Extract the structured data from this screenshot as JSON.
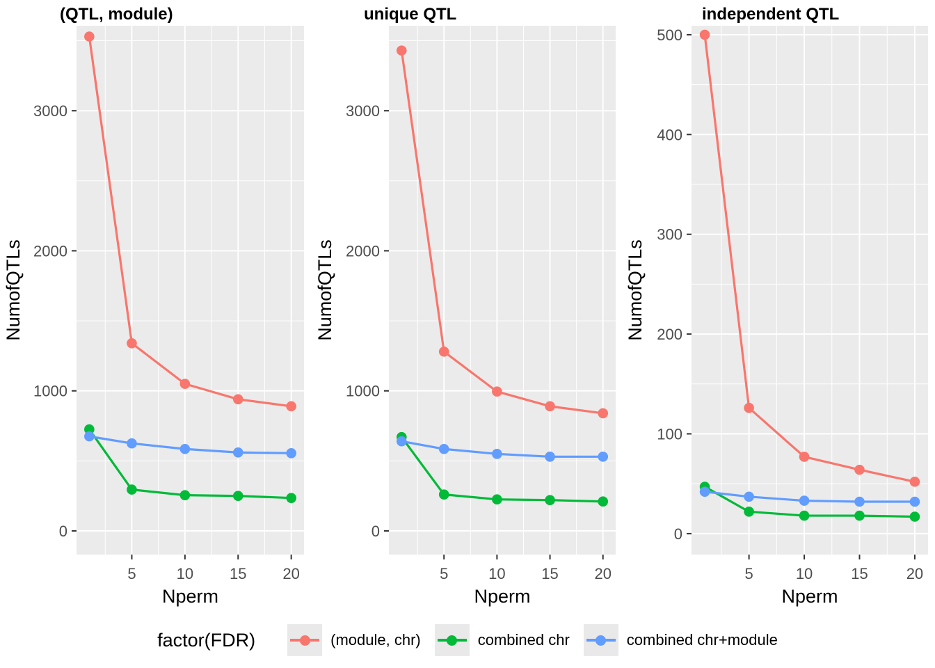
{
  "legend": {
    "title": "factor(FDR)",
    "entries": [
      {
        "label": "(module, chr)",
        "color": "#F8766D"
      },
      {
        "label": "combined chr",
        "color": "#00BA38"
      },
      {
        "label": "combined chr+module",
        "color": "#619CFF"
      }
    ]
  },
  "colors": {
    "panel_background": "#EBEBEB",
    "gridline": "#FFFFFF",
    "tick_label": "#4D4D4D",
    "tick_mark": "#333333",
    "axis_title": "#000000",
    "series_red": "#F8766D",
    "series_green": "#00BA38",
    "series_blue": "#619CFF"
  },
  "chart_data": [
    {
      "type": "line",
      "title": "(QTL, module)",
      "xlabel": "Nperm",
      "ylabel": "NumofQTLs",
      "x": [
        1,
        5,
        10,
        15,
        20
      ],
      "x_ticks": [
        5,
        10,
        15,
        20
      ],
      "x_minor_ticks": [
        2.5,
        7.5,
        12.5,
        17.5
      ],
      "xlim": [
        -0.2,
        21.2
      ],
      "y_ticks": [
        0,
        1000,
        2000,
        3000
      ],
      "y_minor_ticks": [
        500,
        1500,
        2500,
        3500
      ],
      "ylim": [
        -169,
        3607
      ],
      "grid": true,
      "legend_position": "bottom",
      "series": [
        {
          "name": "(module, chr)",
          "color": "#F8766D",
          "values": [
            3530,
            1340,
            1050,
            940,
            890
          ]
        },
        {
          "name": "combined chr",
          "color": "#00BA38",
          "values": [
            725,
            295,
            255,
            250,
            235
          ]
        },
        {
          "name": "combined chr+module",
          "color": "#619CFF",
          "values": [
            675,
            625,
            585,
            560,
            555
          ]
        }
      ]
    },
    {
      "type": "line",
      "title": "unique QTL",
      "xlabel": "Nperm",
      "ylabel": "NumofQTLs",
      "x": [
        1,
        5,
        10,
        15,
        20
      ],
      "x_ticks": [
        5,
        10,
        15,
        20
      ],
      "x_minor_ticks": [
        2.5,
        7.5,
        12.5,
        17.5
      ],
      "xlim": [
        -0.2,
        21.2
      ],
      "y_ticks": [
        0,
        1000,
        2000,
        3000
      ],
      "y_minor_ticks": [
        500,
        1500,
        2500,
        3500
      ],
      "ylim": [
        -169,
        3607
      ],
      "grid": true,
      "legend_position": "bottom",
      "series": [
        {
          "name": "(module, chr)",
          "color": "#F8766D",
          "values": [
            3430,
            1280,
            995,
            890,
            840
          ]
        },
        {
          "name": "combined chr",
          "color": "#00BA38",
          "values": [
            670,
            260,
            225,
            220,
            210
          ]
        },
        {
          "name": "combined chr+module",
          "color": "#619CFF",
          "values": [
            640,
            585,
            550,
            530,
            530
          ]
        }
      ]
    },
    {
      "type": "line",
      "title": "independent QTL",
      "xlabel": "Nperm",
      "ylabel": "NumofQTLs",
      "x": [
        1,
        5,
        10,
        15,
        20
      ],
      "x_ticks": [
        5,
        10,
        15,
        20
      ],
      "x_minor_ticks": [
        2.5,
        7.5,
        12.5,
        17.5
      ],
      "xlim": [
        -0.2,
        21.2
      ],
      "y_ticks": [
        0,
        100,
        200,
        300,
        400,
        500
      ],
      "y_minor_ticks": [
        50,
        150,
        250,
        350,
        450
      ],
      "ylim": [
        -21,
        509
      ],
      "grid": true,
      "legend_position": "bottom",
      "series": [
        {
          "name": "(module, chr)",
          "color": "#F8766D",
          "values": [
            500,
            126,
            77,
            64,
            52
          ]
        },
        {
          "name": "combined chr",
          "color": "#00BA38",
          "values": [
            47,
            22,
            18,
            18,
            17
          ]
        },
        {
          "name": "combined chr+module",
          "color": "#619CFF",
          "values": [
            42,
            37,
            33,
            32,
            32
          ]
        }
      ]
    }
  ]
}
